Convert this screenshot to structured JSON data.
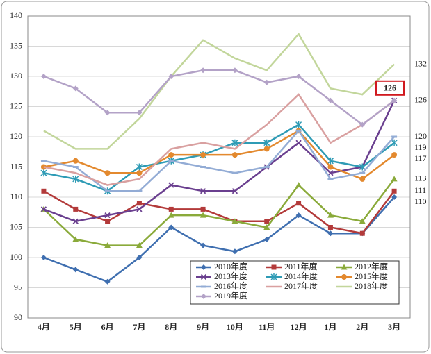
{
  "chart_data": {
    "type": "line",
    "categories": [
      "4月",
      "5月",
      "6月",
      "7月",
      "8月",
      "9月",
      "10月",
      "11月",
      "12月",
      "1月",
      "2月",
      "3月"
    ],
    "series": [
      {
        "name": "2010年度",
        "color": "#3f6fb0",
        "marker": "diamond",
        "values": [
          100,
          98,
          96,
          100,
          105,
          102,
          101,
          103,
          107,
          104,
          104,
          110
        ]
      },
      {
        "name": "2011年度",
        "color": "#b33a3a",
        "marker": "square",
        "values": [
          111,
          108,
          106,
          109,
          108,
          108,
          106,
          106,
          109,
          105,
          104,
          111
        ]
      },
      {
        "name": "2012年度",
        "color": "#8aaa3a",
        "marker": "triangle",
        "values": [
          108,
          103,
          102,
          102,
          107,
          107,
          106,
          105,
          112,
          107,
          106,
          113
        ]
      },
      {
        "name": "2013年度",
        "color": "#6a3f8f",
        "marker": "x",
        "values": [
          108,
          106,
          107,
          108,
          112,
          111,
          111,
          115,
          119,
          114,
          115,
          126
        ]
      },
      {
        "name": "2014年度",
        "color": "#2e9bb5",
        "marker": "star",
        "values": [
          114,
          113,
          111,
          115,
          116,
          117,
          119,
          119,
          122,
          116,
          115,
          119
        ]
      },
      {
        "name": "2015年度",
        "color": "#e3892e",
        "marker": "circle",
        "values": [
          115,
          116,
          114,
          114,
          117,
          117,
          117,
          118,
          121,
          115,
          113,
          117
        ]
      },
      {
        "name": "2016年度",
        "color": "#93acd5",
        "marker": "dash",
        "values": [
          116,
          115,
          111,
          111,
          116,
          115,
          114,
          115,
          121,
          113,
          114,
          120
        ]
      },
      {
        "name": "2017年度",
        "color": "#d9a0a0",
        "marker": "none",
        "values": [
          115,
          114,
          112,
          113,
          118,
          119,
          118,
          122,
          127,
          119,
          122,
          126
        ]
      },
      {
        "name": "2018年度",
        "color": "#c2d69b",
        "marker": "none",
        "values": [
          121,
          118,
          118,
          123,
          130,
          136,
          133,
          131,
          137,
          128,
          127,
          132
        ]
      },
      {
        "name": "2019年度",
        "color": "#b3a2c7",
        "marker": "diamond",
        "values": [
          130,
          128,
          124,
          124,
          130,
          131,
          131,
          129,
          130,
          126,
          122,
          126
        ]
      }
    ],
    "ylim": [
      90,
      140
    ],
    "yticks": [
      90,
      95,
      100,
      105,
      110,
      115,
      120,
      125,
      130,
      135,
      140
    ],
    "grid": true,
    "end_labels": [
      132,
      126,
      120,
      119,
      117,
      113,
      111,
      110
    ],
    "callout": {
      "value": 126,
      "color": "#d0191f"
    }
  }
}
